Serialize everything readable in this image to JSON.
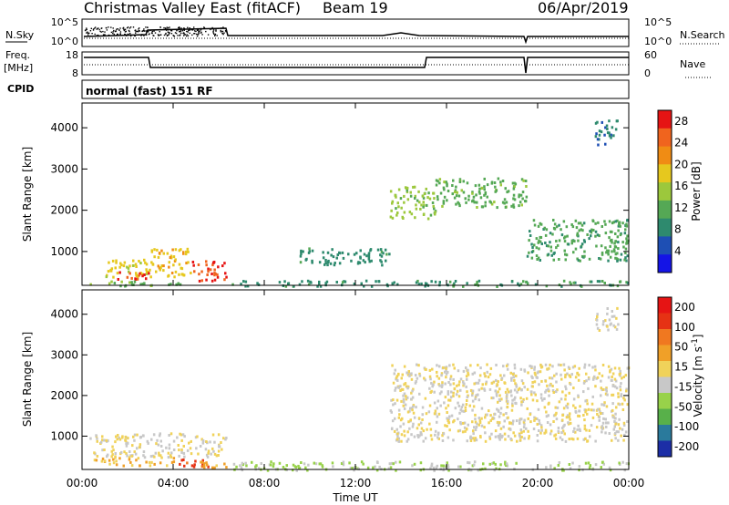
{
  "header": {
    "title": "Christmas Valley East (fitACF)",
    "beam": "Beam 19",
    "date": "06/Apr/2019"
  },
  "nsky_panel": {
    "left_label": "N.Sky",
    "right_label": "N.Search",
    "left_ticks": [
      "10^5",
      "10^0"
    ],
    "right_ticks": [
      "10^5",
      "10^0"
    ]
  },
  "freq_panel": {
    "left_label_1": "Freq.",
    "left_label_2": "[MHz]",
    "right_label": "Nave",
    "left_ticks": [
      "18",
      "8"
    ],
    "right_ticks": [
      "60",
      "0"
    ]
  },
  "cpid_panel": {
    "label": "CPID",
    "value": "normal (fast) 151 RF"
  },
  "colors": {
    "power": [
      "#1414e6",
      "#1e4fb4",
      "#2e8a6e",
      "#55a855",
      "#9cc83c",
      "#e6c81e",
      "#f08c14",
      "#f0641e",
      "#e61414"
    ],
    "velocity": [
      "#1c2ea6",
      "#2a7a9c",
      "#58b04a",
      "#98d24a",
      "#c8c8c8",
      "#f0d25a",
      "#f0a028",
      "#f07820",
      "#e63214",
      "#e61414"
    ]
  },
  "chart_data": [
    {
      "type": "heatmap",
      "title": "",
      "xlabel": "",
      "ylabel": "Slant Range [km]",
      "x_ticks": [
        "00:00",
        "04:00",
        "08:00",
        "12:00",
        "16:00",
        "20:00",
        "00:00"
      ],
      "y_ticks": [
        "1000",
        "2000",
        "3000",
        "4000"
      ],
      "xlim": [
        0,
        24
      ],
      "ylim": [
        180,
        4600
      ],
      "colorbar": {
        "label": "Power [dB]",
        "ticks": [
          "4",
          "8",
          "12",
          "16",
          "20",
          "24",
          "28"
        ],
        "range": [
          0,
          30
        ]
      },
      "regions": [
        {
          "t": [
            1.0,
            3.0
          ],
          "r": [
            400,
            900
          ],
          "value": 18
        },
        {
          "t": [
            1.5,
            3.0
          ],
          "r": [
            350,
            550
          ],
          "value": 28
        },
        {
          "t": [
            3.0,
            4.8
          ],
          "r": [
            400,
            1100
          ],
          "value": 20
        },
        {
          "t": [
            4.8,
            6.3
          ],
          "r": [
            300,
            800
          ],
          "value": 28
        },
        {
          "t": [
            0.3,
            4.5
          ],
          "r": [
            180,
            300
          ],
          "value": 12
        },
        {
          "t": [
            6.5,
            16.0
          ],
          "r": [
            180,
            320
          ],
          "value": 8
        },
        {
          "t": [
            16.0,
            24.0
          ],
          "r": [
            180,
            320
          ],
          "value": 10
        },
        {
          "t": [
            9.5,
            13.5
          ],
          "r": [
            700,
            1100
          ],
          "value": 8
        },
        {
          "t": [
            13.5,
            15.5
          ],
          "r": [
            1800,
            2600
          ],
          "value": 14
        },
        {
          "t": [
            15.5,
            19.5
          ],
          "r": [
            2100,
            2800
          ],
          "value": 12
        },
        {
          "t": [
            19.5,
            24.0
          ],
          "r": [
            800,
            1800
          ],
          "value": 10
        },
        {
          "t": [
            22.5,
            23.5
          ],
          "r": [
            3600,
            4200
          ],
          "value": 6
        }
      ]
    },
    {
      "type": "heatmap",
      "title": "",
      "xlabel": "Time UT",
      "ylabel": "Slant Range [km]",
      "x_ticks": [
        "00:00",
        "04:00",
        "08:00",
        "12:00",
        "16:00",
        "20:00",
        "00:00"
      ],
      "y_ticks": [
        "1000",
        "2000",
        "3000",
        "4000"
      ],
      "xlim": [
        0,
        24
      ],
      "ylim": [
        180,
        4600
      ],
      "colorbar": {
        "label": "Velocity [m s^-1]",
        "ticks": [
          "200",
          "100",
          "50",
          "15",
          "-15",
          "-50",
          "-100",
          "-200"
        ],
        "range": [
          -250,
          250
        ]
      },
      "regions": [
        {
          "t": [
            0.3,
            6.3
          ],
          "r": [
            500,
            1100
          ],
          "value": 0
        },
        {
          "t": [
            0.5,
            4.0
          ],
          "r": [
            300,
            500
          ],
          "value": 60
        },
        {
          "t": [
            4.0,
            5.5
          ],
          "r": [
            250,
            450
          ],
          "value": 180
        },
        {
          "t": [
            5.0,
            6.3
          ],
          "r": [
            250,
            400
          ],
          "value": 80
        },
        {
          "t": [
            6.5,
            24.0
          ],
          "r": [
            180,
            400
          ],
          "value": -60
        },
        {
          "t": [
            13.5,
            24.0
          ],
          "r": [
            900,
            2800
          ],
          "value": 0
        },
        {
          "t": [
            22.5,
            23.5
          ],
          "r": [
            3600,
            4200
          ],
          "value": 0
        }
      ]
    }
  ]
}
